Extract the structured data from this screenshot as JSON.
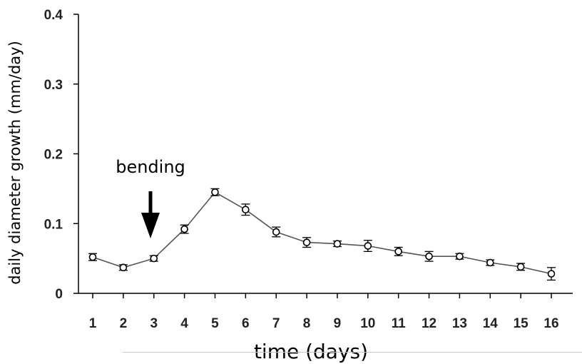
{
  "chart_data": {
    "type": "line",
    "xlabel": "time (days)",
    "ylabel": "daily diameter growth (mm/day)",
    "categories": [
      "1",
      "2",
      "3",
      "4",
      "5",
      "6",
      "7",
      "8",
      "9",
      "10",
      "11",
      "12",
      "13",
      "14",
      "15",
      "16"
    ],
    "series": [
      {
        "values": [
          0.052,
          0.037,
          0.05,
          0.092,
          0.145,
          0.12,
          0.088,
          0.073,
          0.071,
          0.068,
          0.06,
          0.053,
          0.053,
          0.044,
          0.038,
          0.028
        ],
        "errors": [
          0.005,
          0.004,
          0.004,
          0.006,
          0.005,
          0.008,
          0.007,
          0.007,
          0.004,
          0.008,
          0.006,
          0.007,
          0.004,
          0.004,
          0.005,
          0.009
        ]
      }
    ],
    "ylim": [
      0,
      0.4
    ],
    "yticks": [
      "0",
      "0.1",
      "0.2",
      "0.3",
      "0.4"
    ],
    "annotation": {
      "text": "bending",
      "at_category": "3"
    },
    "grid": false,
    "colors": {
      "line": "#555555",
      "marker_fill": "#ffffff",
      "marker_stroke": "#000000",
      "arrow": "#000000"
    }
  }
}
